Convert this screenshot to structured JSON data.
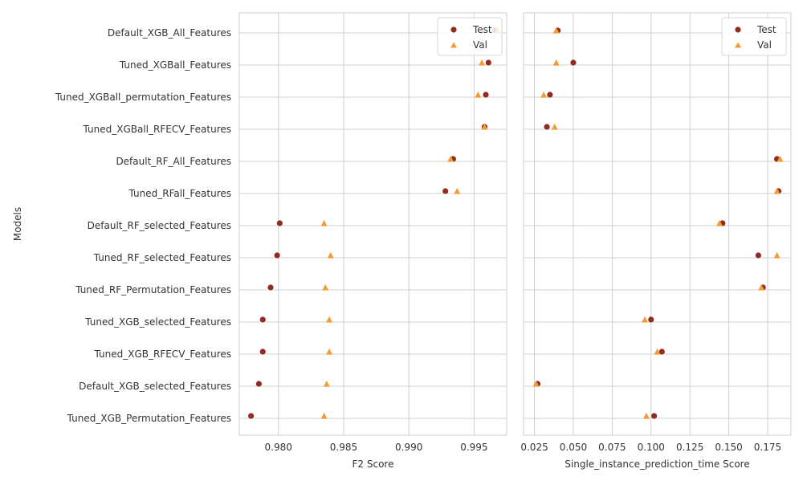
{
  "y_axis_label": "Models",
  "colors": {
    "test": "#922b21",
    "val": "#f39c36",
    "grid": "#d0d0d0",
    "frame": "#cccccc",
    "text": "#333333"
  },
  "chart_data": [
    {
      "type": "scatter",
      "xlabel": "F2 Score",
      "xlim": [
        0.977,
        0.9975
      ],
      "xticks": [
        0.98,
        0.985,
        0.99,
        0.995
      ],
      "xtick_labels": [
        "0.980",
        "0.985",
        "0.990",
        "0.995"
      ],
      "legend": {
        "placement": "top-right",
        "entries": [
          "Test",
          "Val"
        ]
      },
      "grid": true,
      "categories": [
        "Default_XGB_All_Features",
        "Tuned_XGBall_Features",
        "Tuned_XGBall_permutation_Features",
        "Tuned_XGBall_RFECV_Features",
        "Default_RF_All_Features",
        "Tuned_RFall_Features",
        "Default_RF_selected_Features",
        "Tuned_RF_selected_Features",
        "Tuned_RF_Permutation_Features",
        "Tuned_XGB_selected_Features",
        "Tuned_XGB_RFECV_Features",
        "Default_XGB_selected_Features",
        "Tuned_XGB_Permutation_Features"
      ],
      "series": [
        {
          "name": "Test",
          "marker": "circle",
          "values": [
            0.9966,
            0.9961,
            0.9959,
            0.9958,
            0.9934,
            0.9928,
            0.9801,
            0.9799,
            0.9794,
            0.9788,
            0.9788,
            0.9785,
            0.9779
          ]
        },
        {
          "name": "Val",
          "marker": "triangle",
          "values": [
            0.9968,
            0.9956,
            0.9953,
            0.9958,
            0.9932,
            0.9937,
            0.9835,
            0.984,
            0.9836,
            0.9839,
            0.9839,
            0.9837,
            0.9835
          ]
        }
      ]
    },
    {
      "type": "scatter",
      "xlabel": "Single_instance_prediction_time Score",
      "xlim": [
        0.018,
        0.19
      ],
      "xticks": [
        0.025,
        0.05,
        0.075,
        0.1,
        0.125,
        0.15,
        0.175
      ],
      "xtick_labels": [
        "0.025",
        "0.050",
        "0.075",
        "0.100",
        "0.125",
        "0.150",
        "0.175"
      ],
      "legend": {
        "placement": "top-right",
        "entries": [
          "Test",
          "Val"
        ]
      },
      "grid": true,
      "categories": [
        "Default_XGB_All_Features",
        "Tuned_XGBall_Features",
        "Tuned_XGBall_permutation_Features",
        "Tuned_XGBall_RFECV_Features",
        "Default_RF_All_Features",
        "Tuned_RFall_Features",
        "Default_RF_selected_Features",
        "Tuned_RF_selected_Features",
        "Tuned_RF_Permutation_Features",
        "Tuned_XGB_selected_Features",
        "Tuned_XGB_RFECV_Features",
        "Default_XGB_selected_Features",
        "Tuned_XGB_Permutation_Features"
      ],
      "series": [
        {
          "name": "Test",
          "marker": "circle",
          "values": [
            0.04,
            0.05,
            0.035,
            0.033,
            0.181,
            0.182,
            0.146,
            0.169,
            0.172,
            0.1,
            0.107,
            0.027,
            0.102
          ]
        },
        {
          "name": "Val",
          "marker": "triangle",
          "values": [
            0.039,
            0.039,
            0.031,
            0.038,
            0.183,
            0.181,
            0.144,
            0.181,
            0.171,
            0.096,
            0.104,
            0.026,
            0.097
          ]
        }
      ]
    }
  ]
}
